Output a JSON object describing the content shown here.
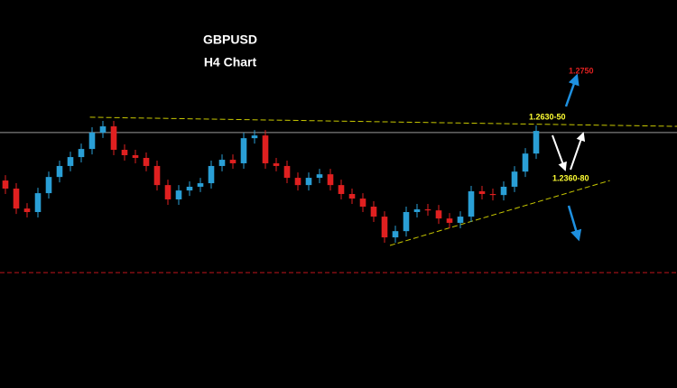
{
  "chart_data": {
    "type": "candlestick",
    "title": "GBPUSD",
    "subtitle": "H4 Chart",
    "ylim": [
      1.137,
      1.324
    ],
    "xlim": [
      -0.5,
      62
    ],
    "up_color": "#2a9fd6",
    "down_color": "#e02020",
    "open": [
      1.237,
      1.2331,
      1.2235,
      1.2218,
      1.2309,
      1.2387,
      1.244,
      1.2483,
      1.2522,
      1.2601,
      1.2631,
      1.2518,
      1.2492,
      1.2479,
      1.244,
      1.2348,
      1.2279,
      1.2322,
      1.234,
      1.2357,
      1.244,
      1.247,
      1.2453,
      1.2574,
      1.2587,
      1.2453,
      1.244,
      1.2383,
      1.2348,
      1.2383,
      1.24,
      1.2348,
      1.2305,
      1.2283,
      1.2244,
      1.2196,
      1.2096,
      1.2126,
      1.2218,
      1.2231,
      1.2226,
      1.2187,
      1.2166,
      1.2196,
      1.2318,
      1.2305,
      1.23,
      1.234,
      1.2413,
      1.25
    ],
    "high": [
      1.2396,
      1.2357,
      1.2261,
      1.2335,
      1.2413,
      1.2466,
      1.2509,
      1.2548,
      1.2627,
      1.2657,
      1.2657,
      1.2544,
      1.2518,
      1.2505,
      1.2466,
      1.2374,
      1.2348,
      1.2366,
      1.2383,
      1.2466,
      1.2496,
      1.2496,
      1.26,
      1.2613,
      1.2613,
      1.2479,
      1.2466,
      1.2409,
      1.2409,
      1.2426,
      1.2426,
      1.2374,
      1.2331,
      1.2309,
      1.227,
      1.2222,
      1.2152,
      1.2244,
      1.2257,
      1.2257,
      1.2252,
      1.2213,
      1.2222,
      1.2344,
      1.2344,
      1.2331,
      1.2366,
      1.2439,
      1.2526,
      1.2635
    ],
    "low": [
      1.2305,
      1.2209,
      1.2192,
      1.2192,
      1.2283,
      1.2361,
      1.2414,
      1.2457,
      1.2496,
      1.2575,
      1.2492,
      1.2466,
      1.2453,
      1.2414,
      1.2322,
      1.2253,
      1.2253,
      1.2296,
      1.2314,
      1.2331,
      1.2414,
      1.2427,
      1.2427,
      1.2548,
      1.2427,
      1.2414,
      1.2357,
      1.2322,
      1.2322,
      1.2357,
      1.2322,
      1.2279,
      1.2257,
      1.2218,
      1.217,
      1.207,
      1.207,
      1.21,
      1.2192,
      1.22,
      1.2161,
      1.214,
      1.214,
      1.217,
      1.2279,
      1.2274,
      1.2274,
      1.2314,
      1.2387,
      1.2474
    ],
    "close": [
      1.2331,
      1.2235,
      1.2218,
      1.2309,
      1.2387,
      1.244,
      1.2483,
      1.2522,
      1.2601,
      1.2631,
      1.2518,
      1.2492,
      1.2479,
      1.244,
      1.2348,
      1.2279,
      1.2322,
      1.234,
      1.2357,
      1.244,
      1.247,
      1.2453,
      1.2574,
      1.2587,
      1.2453,
      1.244,
      1.2383,
      1.2348,
      1.2383,
      1.24,
      1.2348,
      1.2305,
      1.2283,
      1.2244,
      1.2196,
      1.2096,
      1.2126,
      1.2218,
      1.2231,
      1.2226,
      1.2187,
      1.2166,
      1.2196,
      1.2318,
      1.2305,
      1.23,
      1.234,
      1.2413,
      1.25,
      1.2609
    ],
    "hlines": [
      {
        "value": 1.2601,
        "color": "#9a9a9a",
        "dashed": false
      },
      {
        "value": 1.1926,
        "color": "#c0141c",
        "dashed": true
      }
    ],
    "trendlines": [
      {
        "x": [
          7.8,
          62
        ],
        "y": [
          1.2675,
          1.2631
        ],
        "color": "#c8c800"
      },
      {
        "x": [
          35.5,
          55.8
        ],
        "y": [
          1.2057,
          1.237
        ],
        "color": "#c8c800"
      }
    ],
    "annotations": [
      {
        "text": "1.2750",
        "color": "#e02020"
      },
      {
        "text": "1.2630-50",
        "color": "#ffff33"
      },
      {
        "text": "1.2360-80",
        "color": "#ffff33"
      }
    ]
  }
}
